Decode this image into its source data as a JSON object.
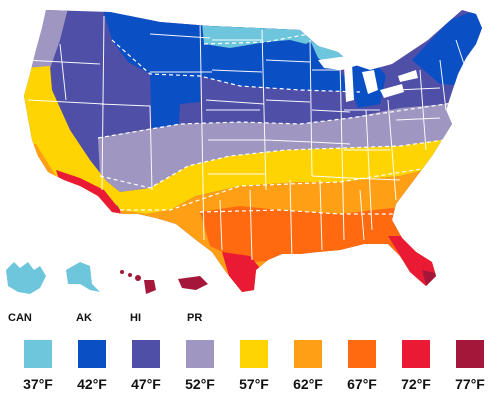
{
  "territories": [
    {
      "id": "can",
      "label": "CAN"
    },
    {
      "id": "ak",
      "label": "AK"
    },
    {
      "id": "hi",
      "label": "HI"
    },
    {
      "id": "pr",
      "label": "PR"
    }
  ],
  "legend": [
    {
      "label": "37°F",
      "color": "#6ec6dc"
    },
    {
      "label": "42°F",
      "color": "#0a4fc4"
    },
    {
      "label": "47°F",
      "color": "#4f4fa8"
    },
    {
      "label": "52°F",
      "color": "#9f97c1"
    },
    {
      "label": "57°F",
      "color": "#ffd400"
    },
    {
      "label": "62°F",
      "color": "#ff9f16"
    },
    {
      "label": "67°F",
      "color": "#ff6a10"
    },
    {
      "label": "72°F",
      "color": "#ea1a35"
    },
    {
      "label": "77°F",
      "color": "#a4173a"
    }
  ]
}
